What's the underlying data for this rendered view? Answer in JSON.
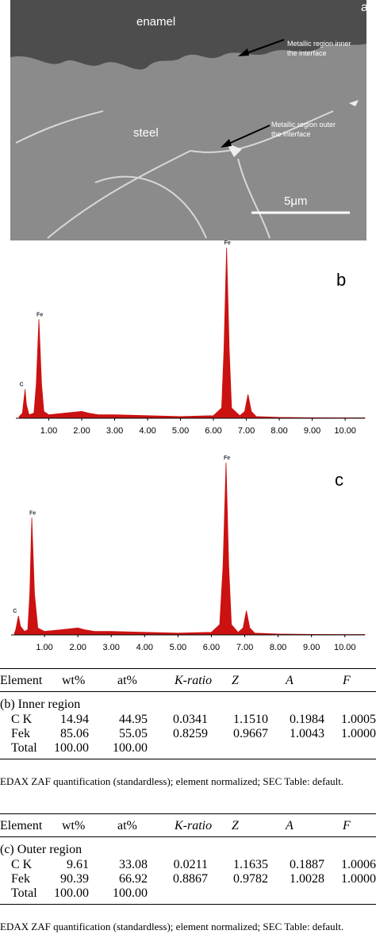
{
  "figure": {
    "sem": {
      "panel": "a",
      "enamel": "enamel",
      "steel": "steel",
      "inner_note": [
        "Metallic region inner",
        "the interface"
      ],
      "outer_note": [
        "Metallic region outer",
        "the interface"
      ],
      "scale": "5μm"
    }
  },
  "chart_data": [
    {
      "type": "area",
      "label": "b",
      "x": [
        0.1,
        0.2,
        0.24,
        0.28,
        0.32,
        0.4,
        0.55,
        0.62,
        0.7,
        0.78,
        0.85,
        1.0,
        1.5,
        2.0,
        2.2,
        2.5,
        3.0,
        4.0,
        5.0,
        6.0,
        6.25,
        6.32,
        6.4,
        6.48,
        6.55,
        6.8,
        6.95,
        7.05,
        7.15,
        7.3,
        8.0,
        9.0,
        10.0,
        10.6
      ],
      "series": [
        {
          "color": "#cc1111",
          "values": [
            1,
            3,
            10,
            17,
            8,
            2,
            3,
            20,
            58,
            20,
            4,
            2,
            3,
            4,
            3,
            2,
            2,
            1.5,
            1,
            1.5,
            6,
            40,
            100,
            40,
            6,
            1.5,
            4,
            14,
            4,
            1,
            0.5,
            0.3,
            0.2,
            0.2
          ]
        }
      ],
      "xlim": [
        0,
        10.6
      ],
      "ylim": [
        0,
        100
      ],
      "xticks": [
        {
          "value": 1,
          "label": "1.00"
        },
        {
          "value": 2,
          "label": "2.00"
        },
        {
          "value": 3,
          "label": "3.00"
        },
        {
          "value": 4,
          "label": "4.00"
        },
        {
          "value": 5,
          "label": "5.00"
        },
        {
          "value": 6,
          "label": "6.00"
        },
        {
          "value": 7,
          "label": "7.00"
        },
        {
          "value": 8,
          "label": "8.00"
        },
        {
          "value": 9,
          "label": "9.00"
        },
        {
          "value": 10,
          "label": "10.00"
        }
      ],
      "annotations": [
        {
          "text": "C",
          "x": 0.28,
          "y": 17
        },
        {
          "text": "Fe",
          "x": 0.7,
          "y": 58
        },
        {
          "text": "Fe",
          "x": 6.4,
          "y": 100
        }
      ]
    },
    {
      "type": "area",
      "label": "c",
      "x": [
        0.1,
        0.14,
        0.18,
        0.22,
        0.28,
        0.4,
        0.5,
        0.56,
        0.62,
        0.7,
        0.8,
        1.0,
        1.5,
        2.0,
        2.2,
        2.5,
        3.0,
        4.0,
        5.0,
        6.0,
        6.25,
        6.35,
        6.44,
        6.52,
        6.6,
        6.8,
        6.95,
        7.05,
        7.15,
        7.3,
        8.0,
        9.0,
        10.0,
        10.6
      ],
      "series": [
        {
          "color": "#cc1111",
          "values": [
            1,
            3,
            7,
            11,
            5,
            2,
            3,
            24,
            68,
            24,
            4,
            2,
            3,
            4,
            3,
            2,
            2,
            1.5,
            1,
            1.5,
            6,
            40,
            100,
            40,
            6,
            1.5,
            4,
            14,
            4,
            1,
            0.5,
            0.3,
            0.2,
            0.2
          ]
        }
      ],
      "xlim": [
        0,
        10.6
      ],
      "ylim": [
        0,
        100
      ],
      "xticks": [
        {
          "value": 1,
          "label": "1.00"
        },
        {
          "value": 2,
          "label": "2.00"
        },
        {
          "value": 3,
          "label": "3.00"
        },
        {
          "value": 4,
          "label": "4.00"
        },
        {
          "value": 5,
          "label": "5.00"
        },
        {
          "value": 6,
          "label": "6.00"
        },
        {
          "value": 7,
          "label": "7.00"
        },
        {
          "value": 8,
          "label": "8.00"
        },
        {
          "value": 9,
          "label": "9.00"
        },
        {
          "value": 10,
          "label": "10.00"
        }
      ],
      "annotations": [
        {
          "text": "C",
          "x": 0.22,
          "y": 11
        },
        {
          "text": "Fe",
          "x": 0.62,
          "y": 68
        },
        {
          "text": "Fe",
          "x": 6.44,
          "y": 100
        }
      ]
    }
  ],
  "tables": [
    {
      "header": [
        "Element",
        "wt%",
        "at%",
        "K-ratio",
        "Z",
        "A",
        "F"
      ],
      "section": "(b) Inner region",
      "rows": [
        [
          "C K",
          "14.94",
          "44.95",
          "0.0341",
          "1.1510",
          "0.1984",
          "1.0005"
        ],
        [
          "Fek",
          "85.06",
          "55.05",
          "0.8259",
          "0.9667",
          "1.0043",
          "1.0000"
        ],
        [
          "Total",
          "100.00",
          "100.00"
        ]
      ],
      "note": "EDAX ZAF quantification (standardless); element normalized; SEC Table: default."
    },
    {
      "header": [
        "Element",
        "wt%",
        "at%",
        "K-ratio",
        "Z",
        "A",
        "F"
      ],
      "section": "(c) Outer region",
      "rows": [
        [
          "C K",
          "9.61",
          "33.08",
          "0.0211",
          "1.1635",
          "0.1887",
          "1.0006"
        ],
        [
          "Fek",
          "90.39",
          "66.92",
          "0.8867",
          "0.9782",
          "1.0028",
          "1.0000"
        ],
        [
          "Total",
          "100.00",
          "100.00"
        ]
      ],
      "note": "EDAX ZAF quantification (standardless); element normalized; SEC Table: default."
    }
  ]
}
